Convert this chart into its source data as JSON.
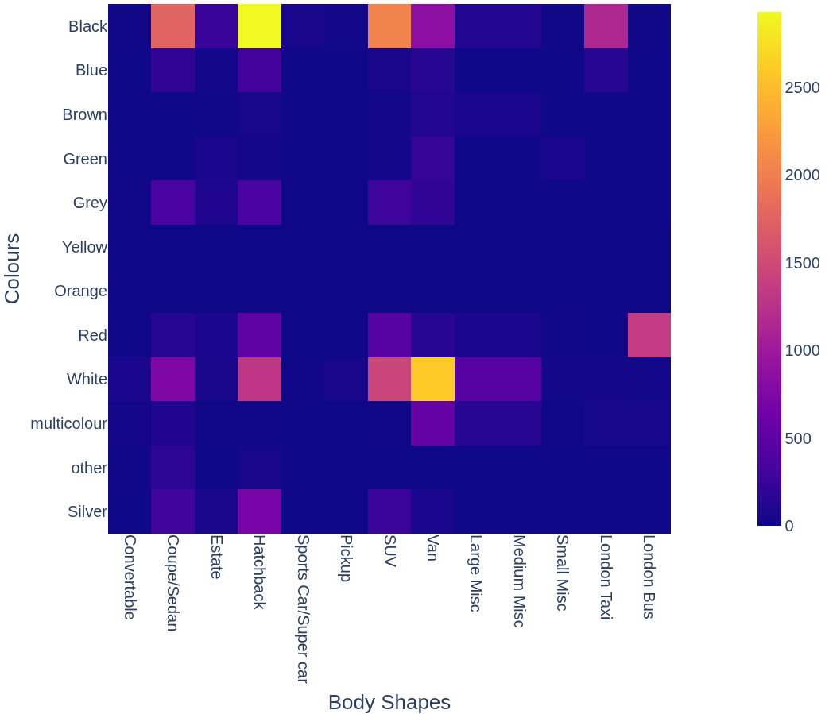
{
  "chart_data": {
    "type": "heatmap",
    "xlabel": "Body Shapes",
    "ylabel": "Colours",
    "categories": [
      "Convertable",
      "Coupe/Sedan",
      "Estate",
      "Hatchback",
      "Sports Car/Super car",
      "Pickup",
      "SUV",
      "Van",
      "Large Misc",
      "Medium Misc",
      "Small Misc",
      "London Taxi",
      "London Bus"
    ],
    "y_categories": [
      "Black",
      "Blue",
      "Brown",
      "Green",
      "Grey",
      "Yellow",
      "Orange",
      "Red",
      "White",
      "multicolour",
      "other",
      "Silver"
    ],
    "cells": [
      [
        20,
        1750,
        250,
        2930,
        60,
        30,
        2050,
        850,
        120,
        120,
        20,
        1150,
        20
      ],
      [
        10,
        200,
        30,
        300,
        10,
        10,
        60,
        150,
        10,
        10,
        10,
        150,
        10
      ],
      [
        10,
        10,
        20,
        50,
        10,
        10,
        30,
        120,
        80,
        80,
        10,
        10,
        10
      ],
      [
        10,
        10,
        80,
        30,
        10,
        10,
        30,
        220,
        10,
        10,
        80,
        10,
        10
      ],
      [
        20,
        350,
        100,
        350,
        10,
        10,
        280,
        200,
        10,
        10,
        10,
        10,
        10
      ],
      [
        5,
        5,
        5,
        5,
        5,
        5,
        5,
        5,
        5,
        5,
        5,
        5,
        5
      ],
      [
        5,
        5,
        5,
        5,
        5,
        5,
        5,
        5,
        5,
        5,
        5,
        5,
        5
      ],
      [
        10,
        150,
        80,
        500,
        10,
        10,
        450,
        150,
        80,
        80,
        20,
        10,
        1350
      ],
      [
        80,
        750,
        60,
        1300,
        20,
        60,
        1450,
        2600,
        450,
        450,
        30,
        40,
        30
      ],
      [
        40,
        100,
        20,
        20,
        10,
        10,
        20,
        550,
        150,
        150,
        20,
        50,
        50
      ],
      [
        20,
        180,
        10,
        60,
        10,
        10,
        10,
        10,
        10,
        10,
        10,
        10,
        10
      ],
      [
        10,
        280,
        60,
        700,
        10,
        10,
        260,
        80,
        10,
        10,
        10,
        10,
        10
      ]
    ],
    "clim": [
      0,
      2930
    ],
    "cticks": [
      0,
      500,
      1000,
      1500,
      2000,
      2500
    ]
  }
}
